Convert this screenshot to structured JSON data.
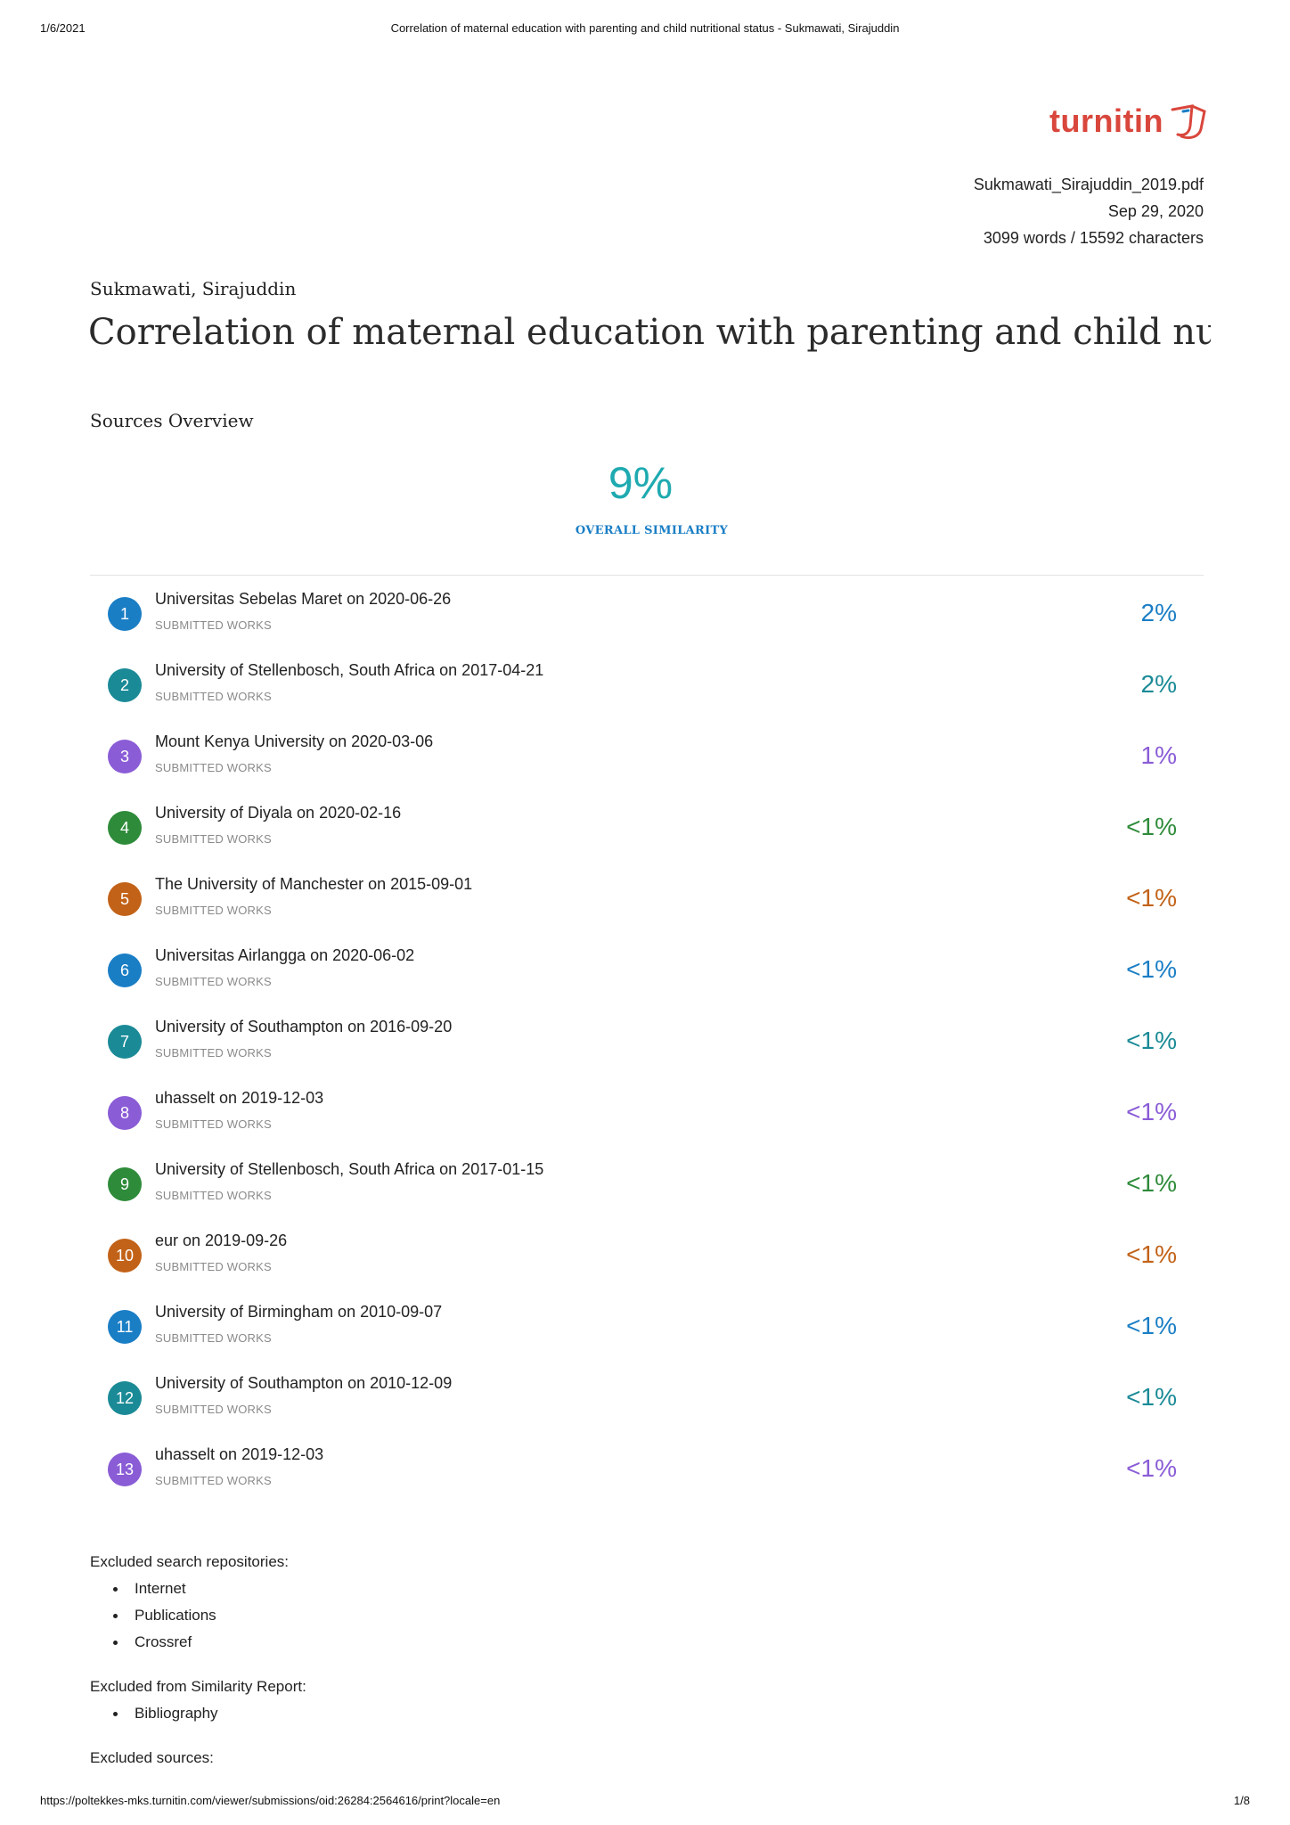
{
  "print_header": {
    "date": "1/6/2021",
    "title": "Correlation of maternal education with parenting and child nutritional status - Sukmawati, Sirajuddin"
  },
  "print_footer": {
    "url": "https://poltekkes-mks.turnitin.com/viewer/submissions/oid:26284:2564616/print?locale=en",
    "page": "1/8"
  },
  "logo": {
    "text": "turnitin",
    "color": "#d9463c"
  },
  "file_meta": {
    "filename": "Sukmawati_Sirajuddin_2019.pdf",
    "date": "Sep 29, 2020",
    "counts": "3099 words / 15592 characters"
  },
  "document": {
    "author": "Sukmawati, Sirajuddin",
    "title": "Correlation of maternal education with parenting and child nut..."
  },
  "sources_overview": {
    "section_title": "Sources Overview",
    "overall_percent": "9%",
    "overall_label": "OVERALL SIMILARITY",
    "sources": [
      {
        "num": "1",
        "name": "Universitas Sebelas Maret on 2020-06-26",
        "type": "SUBMITTED WORKS",
        "percent": "2%",
        "color": "#1a7ec5"
      },
      {
        "num": "2",
        "name": "University of Stellenbosch, South Africa on 2017-04-21",
        "type": "SUBMITTED WORKS",
        "percent": "2%",
        "color": "#1a8a96"
      },
      {
        "num": "3",
        "name": "Mount Kenya University on 2020-03-06",
        "type": "SUBMITTED WORKS",
        "percent": "1%",
        "color": "#8a5cd6"
      },
      {
        "num": "4",
        "name": "University of Diyala on 2020-02-16",
        "type": "SUBMITTED WORKS",
        "percent": "<1%",
        "color": "#2e8b3a"
      },
      {
        "num": "5",
        "name": "The University of Manchester on 2015-09-01",
        "type": "SUBMITTED WORKS",
        "percent": "<1%",
        "color": "#c26218"
      },
      {
        "num": "6",
        "name": "Universitas Airlangga on 2020-06-02",
        "type": "SUBMITTED WORKS",
        "percent": "<1%",
        "color": "#1a7ec5"
      },
      {
        "num": "7",
        "name": "University of Southampton on 2016-09-20",
        "type": "SUBMITTED WORKS",
        "percent": "<1%",
        "color": "#1a8a96"
      },
      {
        "num": "8",
        "name": "uhasselt on 2019-12-03",
        "type": "SUBMITTED WORKS",
        "percent": "<1%",
        "color": "#8a5cd6"
      },
      {
        "num": "9",
        "name": "University of Stellenbosch, South Africa on 2017-01-15",
        "type": "SUBMITTED WORKS",
        "percent": "<1%",
        "color": "#2e8b3a"
      },
      {
        "num": "10",
        "name": "eur on 2019-09-26",
        "type": "SUBMITTED WORKS",
        "percent": "<1%",
        "color": "#c26218"
      },
      {
        "num": "11",
        "name": "University of Birmingham on 2010-09-07",
        "type": "SUBMITTED WORKS",
        "percent": "<1%",
        "color": "#1a7ec5"
      },
      {
        "num": "12",
        "name": "University of Southampton on 2010-12-09",
        "type": "SUBMITTED WORKS",
        "percent": "<1%",
        "color": "#1a8a96"
      },
      {
        "num": "13",
        "name": "uhasselt on 2019-12-03",
        "type": "SUBMITTED WORKS",
        "percent": "<1%",
        "color": "#8a5cd6"
      }
    ]
  },
  "excluded": {
    "repositories_heading": "Excluded search repositories:",
    "repositories": [
      "Internet",
      "Publications",
      "Crossref"
    ],
    "report_heading": "Excluded from Similarity Report:",
    "report_items": [
      "Bibliography"
    ],
    "sources_heading": "Excluded sources:"
  }
}
